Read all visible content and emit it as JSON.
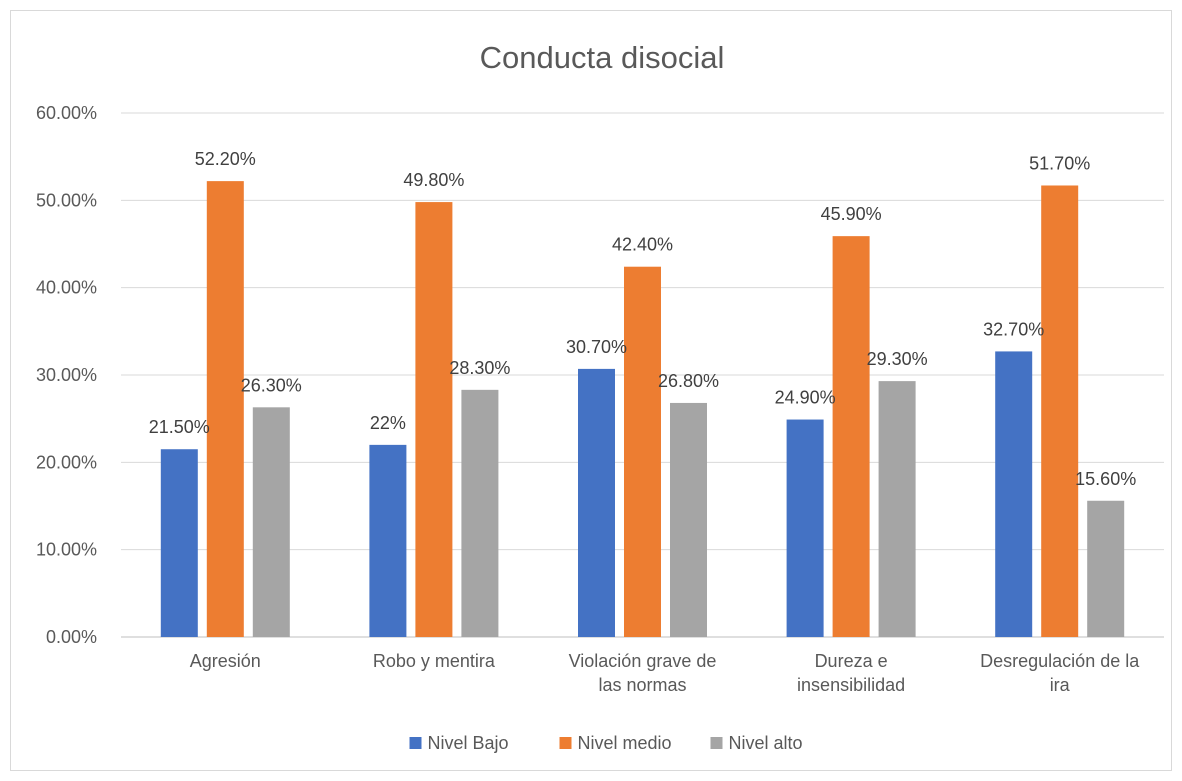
{
  "chart_data": {
    "type": "bar",
    "title": "Conducta disocial",
    "xlabel": "",
    "ylabel": "",
    "categories": [
      "Agresión",
      "Robo y mentira",
      "Violación grave de las normas",
      "Dureza e insensibilidad",
      "Desregulación de la ira"
    ],
    "category_lines": [
      [
        "Agresión"
      ],
      [
        "Robo y mentira"
      ],
      [
        "Violación grave de",
        "las normas"
      ],
      [
        "Dureza e",
        "insensibilidad"
      ],
      [
        "Desregulación de la",
        "ira"
      ]
    ],
    "series": [
      {
        "name": "Nivel Bajo",
        "color": "#4472c4",
        "values": [
          21.5,
          22.0,
          30.7,
          24.9,
          32.7
        ],
        "labels": [
          "21.50%",
          "22%",
          "30.70%",
          "24.90%",
          "32.70%"
        ]
      },
      {
        "name": "Nivel medio",
        "color": "#ed7d31",
        "values": [
          52.2,
          49.8,
          42.4,
          45.9,
          51.7
        ],
        "labels": [
          "52.20%",
          "49.80%",
          "42.40%",
          "45.90%",
          "51.70%"
        ]
      },
      {
        "name": "Nivel alto",
        "color": "#a5a5a5",
        "values": [
          26.3,
          28.3,
          26.8,
          29.3,
          15.6
        ],
        "labels": [
          "26.30%",
          "28.30%",
          "26.80%",
          "29.30%",
          "15.60%"
        ]
      }
    ],
    "ylim": [
      0,
      60
    ],
    "yticks": [
      0,
      10,
      20,
      30,
      40,
      50,
      60
    ],
    "ytick_labels": [
      "0.00%",
      "10.00%",
      "20.00%",
      "30.00%",
      "40.00%",
      "50.00%",
      "60.00%"
    ],
    "grid": true,
    "legend_position": "bottom"
  }
}
